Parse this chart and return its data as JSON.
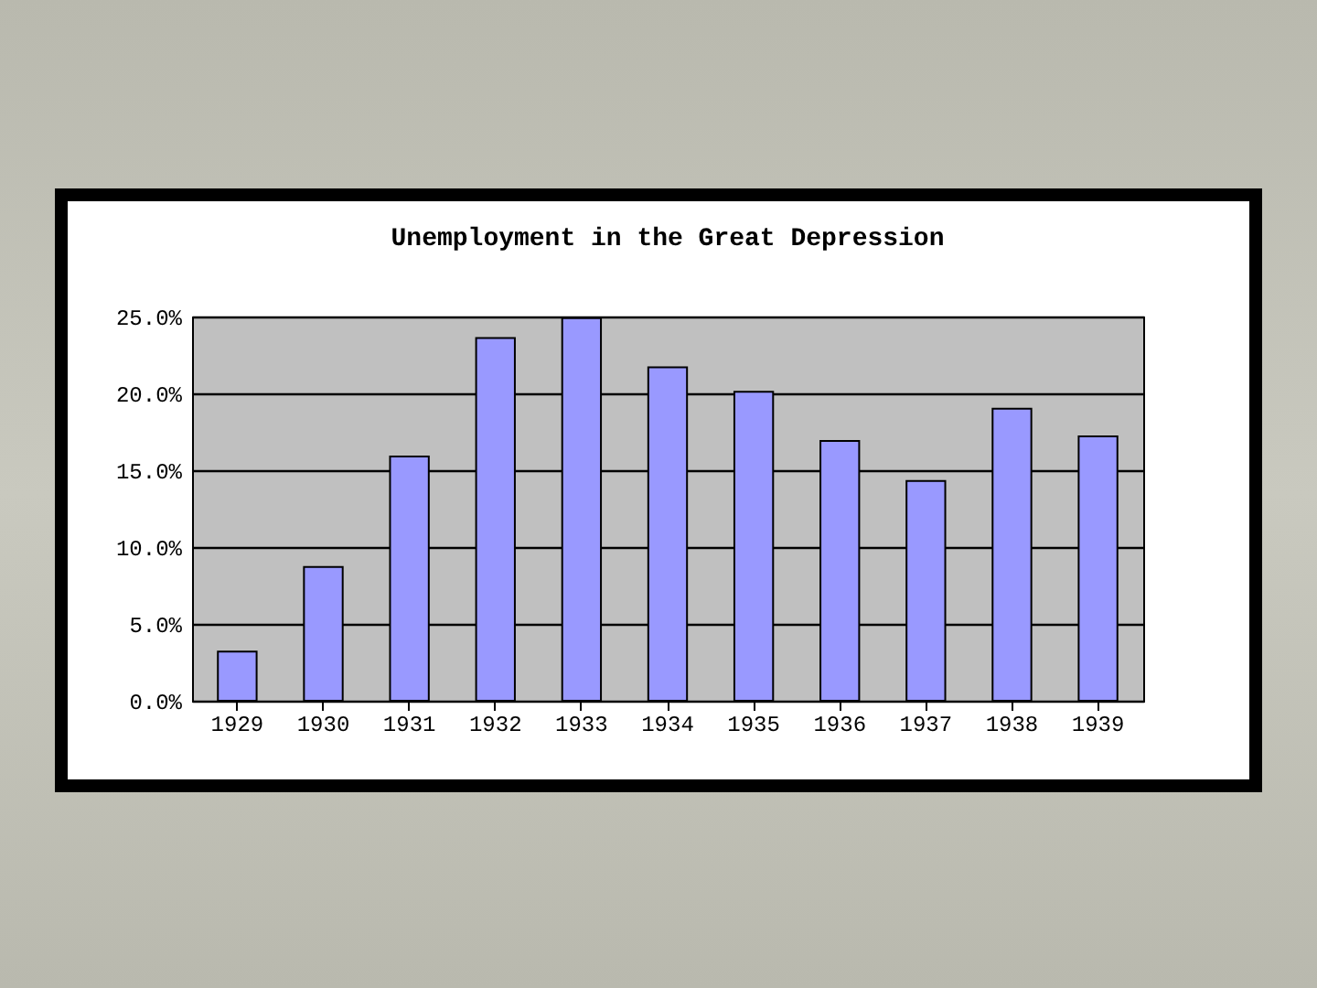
{
  "chart_data": {
    "type": "bar",
    "title": "Unemployment in the Great Depression",
    "categories": [
      "1929",
      "1930",
      "1931",
      "1932",
      "1933",
      "1934",
      "1935",
      "1936",
      "1937",
      "1938",
      "1939"
    ],
    "values": [
      3.2,
      8.7,
      15.9,
      23.6,
      24.9,
      21.7,
      20.1,
      16.9,
      14.3,
      19.0,
      17.2
    ],
    "color": "#9999ff",
    "ylim": [
      0,
      25
    ],
    "yticks": [
      {
        "value": 0,
        "label": "0.0%"
      },
      {
        "value": 5,
        "label": "5.0%"
      },
      {
        "value": 10,
        "label": "10.0%"
      },
      {
        "value": 15,
        "label": "15.0%"
      },
      {
        "value": 20,
        "label": "20.0%"
      },
      {
        "value": 25,
        "label": "25.0%"
      }
    ],
    "grid": "y"
  }
}
